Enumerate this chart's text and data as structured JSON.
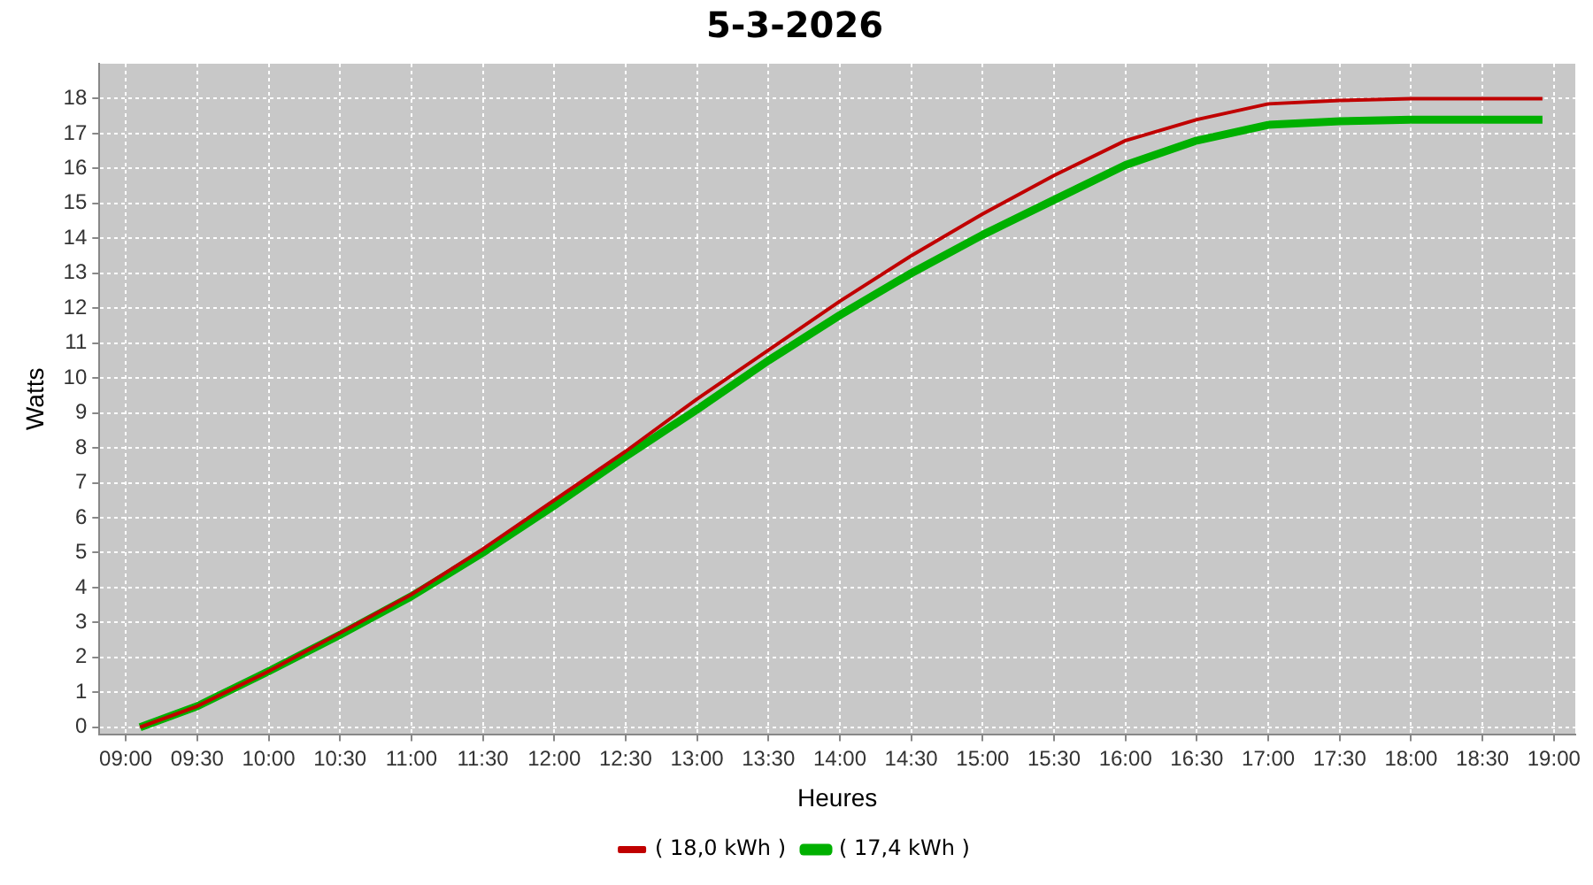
{
  "chart_data": {
    "type": "line",
    "title": "5-3-2026",
    "xlabel": "Heures",
    "ylabel": "Watts",
    "xlim": [
      8.815,
      19.15
    ],
    "ylim": [
      -0.2,
      19
    ],
    "xticks": [
      {
        "value": 9,
        "label": "09:00"
      },
      {
        "value": 9.5,
        "label": "09:30"
      },
      {
        "value": 10,
        "label": "10:00"
      },
      {
        "value": 10.5,
        "label": "10:30"
      },
      {
        "value": 11,
        "label": "11:00"
      },
      {
        "value": 11.5,
        "label": "11:30"
      },
      {
        "value": 12,
        "label": "12:00"
      },
      {
        "value": 12.5,
        "label": "12:30"
      },
      {
        "value": 13,
        "label": "13:00"
      },
      {
        "value": 13.5,
        "label": "13:30"
      },
      {
        "value": 14,
        "label": "14:00"
      },
      {
        "value": 14.5,
        "label": "14:30"
      },
      {
        "value": 15,
        "label": "15:00"
      },
      {
        "value": 15.5,
        "label": "15:30"
      },
      {
        "value": 16,
        "label": "16:00"
      },
      {
        "value": 16.5,
        "label": "16:30"
      },
      {
        "value": 17,
        "label": "17:00"
      },
      {
        "value": 17.5,
        "label": "17:30"
      },
      {
        "value": 18,
        "label": "18:00"
      },
      {
        "value": 18.5,
        "label": "18:30"
      },
      {
        "value": 19,
        "label": "19:00"
      }
    ],
    "yticks": [
      0,
      1,
      2,
      3,
      4,
      5,
      6,
      7,
      8,
      9,
      10,
      11,
      12,
      13,
      14,
      15,
      16,
      17,
      18
    ],
    "x": [
      9.1,
      9.5,
      10,
      10.5,
      11,
      11.5,
      12,
      12.5,
      13,
      13.5,
      14,
      14.5,
      15,
      15.5,
      16,
      16.5,
      17,
      17.5,
      18,
      18.5,
      18.92
    ],
    "grid": true,
    "legend": "bottom",
    "marker": "none",
    "line_style": "solid",
    "series": [
      {
        "name": "( 18,0 kWh )",
        "color": "#c00000",
        "values": [
          0,
          0.6,
          1.6,
          2.7,
          3.8,
          5.1,
          6.5,
          7.9,
          9.4,
          10.8,
          12.2,
          13.5,
          14.7,
          15.8,
          16.8,
          17.4,
          17.85,
          17.95,
          18,
          18,
          18
        ]
      },
      {
        "name": "( 17,4 kWh )",
        "color": "#00b000",
        "values": [
          0,
          0.6,
          1.6,
          2.65,
          3.75,
          5,
          6.35,
          7.75,
          9.1,
          10.5,
          11.8,
          13,
          14.1,
          15.1,
          16.1,
          16.8,
          17.25,
          17.35,
          17.4,
          17.4,
          17.4
        ]
      }
    ]
  }
}
